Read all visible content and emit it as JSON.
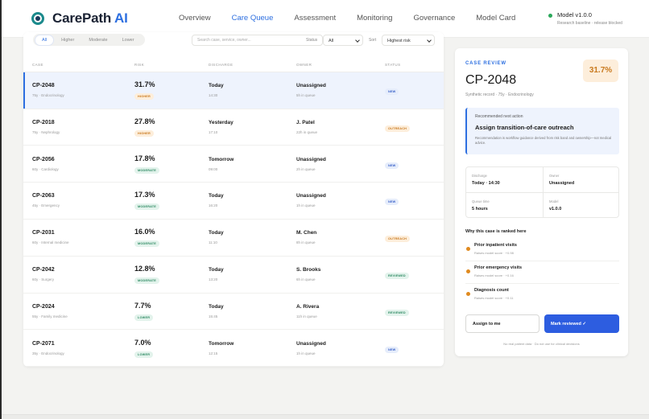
{
  "brand": {
    "name": "CarePath",
    "accent": "AI"
  },
  "nav": [
    {
      "label": "Overview",
      "active": false
    },
    {
      "label": "Care Queue",
      "active": true
    },
    {
      "label": "Assessment",
      "active": false
    },
    {
      "label": "Monitoring",
      "active": false
    },
    {
      "label": "Governance",
      "active": false
    },
    {
      "label": "Model Card",
      "active": false
    }
  ],
  "model": {
    "name": "Model v1.0.0",
    "sub": "Research baseline · release blocked"
  },
  "filters": {
    "risk_segments": [
      "All",
      "Higher",
      "Moderate",
      "Lower"
    ],
    "search_placeholder": "Search case, service, owner...",
    "status_label": "Status",
    "status_value": "All",
    "sort_label": "Sort",
    "sort_value": "Highest risk"
  },
  "columns": [
    "CASE",
    "RISK",
    "DISCHARGE",
    "OWNER",
    "STATUS"
  ],
  "rows": [
    {
      "id": "CP-2048",
      "sub": "75y · Endocrinology",
      "risk": "31.7%",
      "band": "HIGHER",
      "discharge": "Today",
      "time": "14:30",
      "owner": "Unassigned",
      "queue": "5h in queue",
      "status": "NEW"
    },
    {
      "id": "CP-2018",
      "sub": "75y · Nephrology",
      "risk": "27.8%",
      "band": "HIGHER",
      "discharge": "Yesterday",
      "time": "17:10",
      "owner": "J. Patel",
      "queue": "22h in queue",
      "status": "OUTREACH"
    },
    {
      "id": "CP-2056",
      "sub": "60y · Cardiology",
      "risk": "17.8%",
      "band": "MODERATE",
      "discharge": "Tomorrow",
      "time": "09:00",
      "owner": "Unassigned",
      "queue": "2h in queue",
      "status": "NEW"
    },
    {
      "id": "CP-2063",
      "sub": "45y · Emergency",
      "risk": "17.3%",
      "band": "MODERATE",
      "discharge": "Today",
      "time": "16:20",
      "owner": "Unassigned",
      "queue": "1h in queue",
      "status": "NEW"
    },
    {
      "id": "CP-2031",
      "sub": "60y · Internal medicine",
      "risk": "16.0%",
      "band": "MODERATE",
      "discharge": "Today",
      "time": "11:10",
      "owner": "M. Chen",
      "queue": "8h in queue",
      "status": "OUTREACH"
    },
    {
      "id": "CP-2042",
      "sub": "60y · Surgery",
      "risk": "12.8%",
      "band": "MODERATE",
      "discharge": "Today",
      "time": "13:20",
      "owner": "S. Brooks",
      "queue": "6h in queue",
      "status": "REVIEWED"
    },
    {
      "id": "CP-2024",
      "sub": "55y · Family medicine",
      "risk": "7.7%",
      "band": "LOWER",
      "discharge": "Today",
      "time": "15:45",
      "owner": "A. Rivera",
      "queue": "11h in queue",
      "status": "REVIEWED"
    },
    {
      "id": "CP-2071",
      "sub": "35y · Endocrinology",
      "risk": "7.0%",
      "band": "LOWER",
      "discharge": "Tomorrow",
      "time": "12:15",
      "owner": "Unassigned",
      "queue": "1h in queue",
      "status": "NEW"
    }
  ],
  "review": {
    "eyebrow": "CASE REVIEW",
    "id": "CP-2048",
    "score": "31.7%",
    "meta": "Synthetic record · 75y · Endocrinology",
    "rec_label": "Recommended next action",
    "rec_title": "Assign transition-of-care outreach",
    "rec_note": "Recommendation is workflow guidance derived from risk band and ownership—not medical advice.",
    "grid": {
      "discharge_label": "Discharge",
      "discharge_value": "Today · 14:30",
      "owner_label": "Owner",
      "owner_value": "Unassigned",
      "queue_label": "Queue time",
      "queue_value": "5 hours",
      "model_label": "Model",
      "model_value": "v1.0.0"
    },
    "why": "Why this case is ranked here",
    "factors": [
      {
        "name": "Prior inpatient visits",
        "sub": "Raises model score · +0.98"
      },
      {
        "name": "Prior emergency visits",
        "sub": "Raises model score · +0.16"
      },
      {
        "name": "Diagnosis count",
        "sub": "Raises model score · +0.11"
      }
    ],
    "assign": "Assign to me",
    "mark": "Mark reviewed ✓",
    "disclaimer": "No real patient data · Do not use for clinical decisions"
  },
  "colors": {
    "accent": "#2d6fe0",
    "higher": "#c97a1f",
    "moderate": "#2e8a63",
    "teal": "#1b8a8c"
  }
}
